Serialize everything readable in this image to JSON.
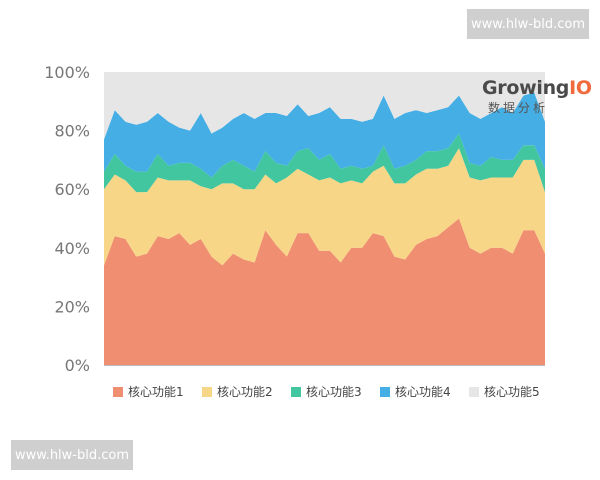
{
  "watermark": {
    "top": "www.hlw-bld.com",
    "bottom": "www.hlw-bld.com"
  },
  "logo": {
    "word": "Growing",
    "word_io": "IO",
    "sub": "数据分析"
  },
  "colors": {
    "background_band": "#e6e6e6",
    "series": [
      "#ef8e70",
      "#f8d687",
      "#42c6a0",
      "#45aee4",
      "#e6e6e6"
    ]
  },
  "chart_data": {
    "type": "area",
    "stacked": true,
    "ylim": [
      0,
      100
    ],
    "y_ticks": [
      "0%",
      "20%",
      "40%",
      "60%",
      "80%",
      "100%"
    ],
    "grid": false,
    "legend_position": "bottom",
    "series": [
      {
        "name": "核心功能1",
        "color": "#ef8e70",
        "values": [
          34,
          44,
          43,
          37,
          38,
          44,
          43,
          45,
          41,
          43,
          37,
          34,
          38,
          36,
          35,
          46,
          41,
          37,
          45,
          45,
          39,
          39,
          35,
          40,
          40,
          45,
          44,
          37,
          36,
          41,
          43,
          44,
          47,
          50,
          40,
          38,
          40,
          40,
          38,
          46,
          46,
          38
        ]
      },
      {
        "name": "核心功能2",
        "color": "#f8d687",
        "values": [
          26,
          21,
          20,
          22,
          21,
          20,
          20,
          18,
          22,
          18,
          23,
          28,
          24,
          24,
          25,
          19,
          21,
          27,
          22,
          20,
          24,
          25,
          27,
          23,
          22,
          21,
          24,
          25,
          26,
          24,
          24,
          23,
          21,
          24,
          24,
          25,
          24,
          24,
          26,
          24,
          24,
          21
        ]
      },
      {
        "name": "核心功能3",
        "color": "#42c6a0",
        "values": [
          6,
          7,
          5,
          7,
          7,
          8,
          5,
          6,
          6,
          6,
          4,
          6,
          8,
          8,
          6,
          8,
          7,
          4,
          6,
          9,
          7,
          8,
          5,
          5,
          5,
          2,
          7,
          5,
          6,
          5,
          6,
          6,
          6,
          5,
          5,
          5,
          7,
          6,
          6,
          5,
          5,
          8
        ]
      },
      {
        "name": "核心功能4",
        "color": "#45aee4",
        "values": [
          11,
          15,
          15,
          16,
          17,
          14,
          15,
          12,
          11,
          19,
          15,
          13,
          14,
          18,
          18,
          13,
          17,
          17,
          16,
          11,
          16,
          16,
          17,
          16,
          16,
          16,
          17,
          17,
          18,
          17,
          13,
          14,
          14,
          13,
          17,
          16,
          15,
          18,
          16,
          17,
          18,
          16
        ]
      },
      {
        "name": "核心功能5",
        "color": "#e6e6e6",
        "values": [
          23,
          13,
          17,
          18,
          17,
          14,
          17,
          19,
          20,
          14,
          21,
          19,
          16,
          14,
          16,
          14,
          14,
          15,
          11,
          15,
          14,
          12,
          16,
          16,
          17,
          16,
          8,
          16,
          14,
          13,
          14,
          13,
          12,
          8,
          14,
          16,
          14,
          12,
          14,
          8,
          7,
          17
        ]
      }
    ]
  }
}
